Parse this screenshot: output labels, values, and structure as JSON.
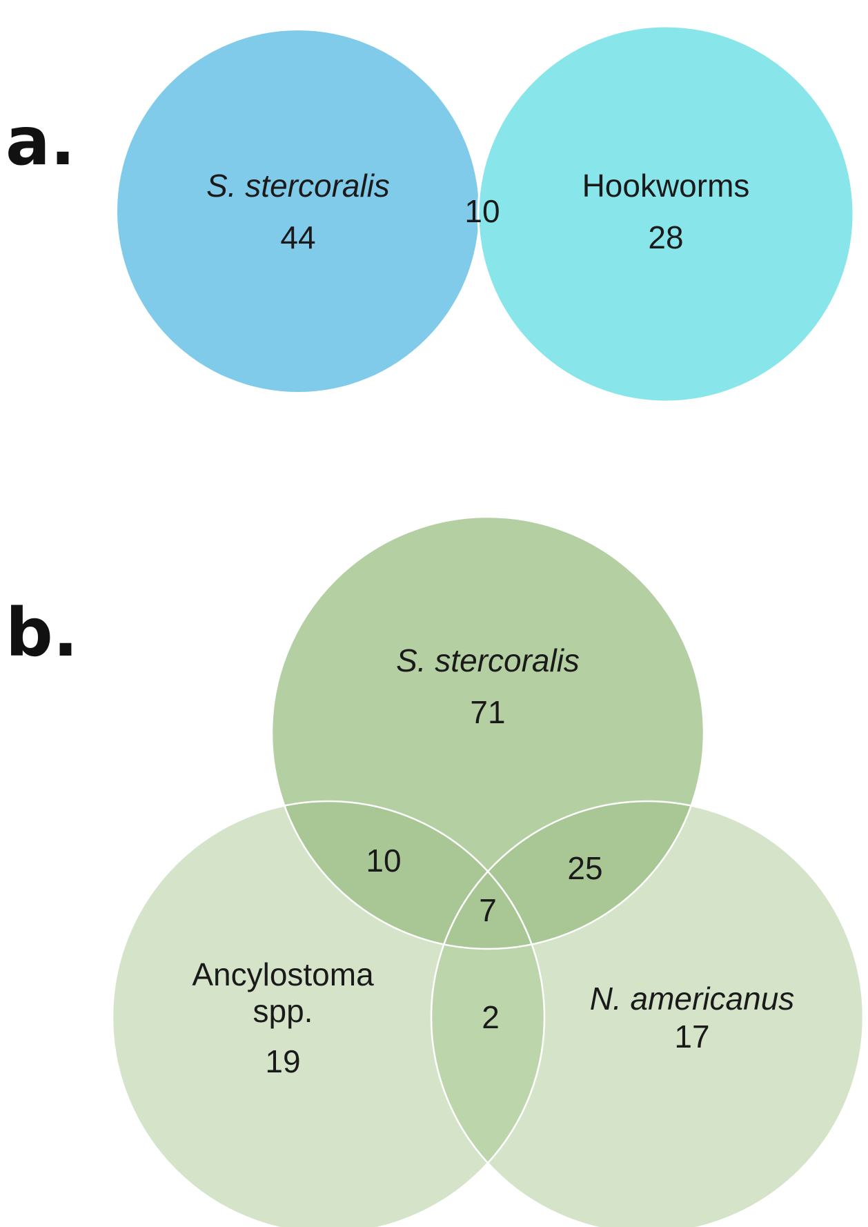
{
  "panels": {
    "a": {
      "label": "a.",
      "colors": {
        "set1": "#80cbea",
        "set2": "#88e6ea",
        "overlap": "#46cfe3",
        "border": "#ffffff"
      },
      "sets": [
        {
          "name": "S. stercoralis",
          "italic": true,
          "count": "44"
        },
        {
          "name": "Hookworms",
          "italic": false,
          "count": "28"
        }
      ],
      "overlap_count": "10"
    },
    "b": {
      "label": "b.",
      "colors": {
        "top": "#b4cfa2",
        "bottom": "#d5e4c9",
        "overlap": "#a8c795",
        "border": "#ffffff"
      },
      "sets": [
        {
          "name": "S. stercoralis",
          "italic": true,
          "count": "71"
        },
        {
          "name_line1": "Ancylostoma",
          "name_line2": "spp.",
          "italic": false,
          "count": "19"
        },
        {
          "name": "N. americanus",
          "italic": true,
          "count": "17"
        }
      ],
      "overlaps": {
        "stercoralis_ancylostoma": "10",
        "stercoralis_americanus": "25",
        "all_three": "7",
        "ancylostoma_americanus": "2"
      }
    }
  }
}
